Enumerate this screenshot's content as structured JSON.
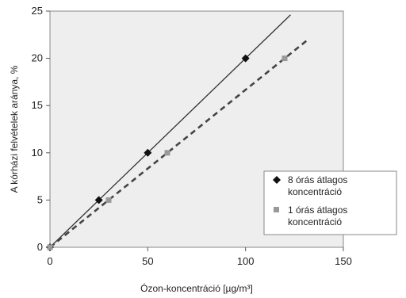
{
  "chart_data": {
    "type": "line",
    "xlabel": "Ózon-koncentráció [µg/m³]",
    "ylabel": "A kórházi felvételek aránya, %",
    "xlim": [
      0,
      150
    ],
    "ylim": [
      0,
      25
    ],
    "xticks": [
      "0",
      "50",
      "100",
      "150"
    ],
    "yticks": [
      "0",
      "5",
      "10",
      "15",
      "20",
      "25"
    ],
    "grid": false,
    "legend_position": "bottom-right",
    "series": [
      {
        "name": "8 órás átlagos koncentráció",
        "name_lines": [
          "8 órás átlagos",
          "koncentráció"
        ],
        "marker": "diamond",
        "line_style": "solid",
        "color": "#111111",
        "points": [
          {
            "x": 0,
            "y": 0
          },
          {
            "x": 25,
            "y": 5
          },
          {
            "x": 50,
            "y": 10
          },
          {
            "x": 100,
            "y": 20
          }
        ],
        "line": [
          {
            "x": 0,
            "y": 0
          },
          {
            "x": 123,
            "y": 24.6
          }
        ]
      },
      {
        "name": "1 órás átlagos koncentráció",
        "name_lines": [
          "1 órás átlagos",
          "koncentráció"
        ],
        "marker": "square",
        "line_style": "dashed",
        "color": "#999999",
        "points": [
          {
            "x": 0,
            "y": 0
          },
          {
            "x": 30,
            "y": 5
          },
          {
            "x": 60,
            "y": 10
          },
          {
            "x": 120,
            "y": 20
          }
        ],
        "line": [
          {
            "x": 0,
            "y": 0
          },
          {
            "x": 132,
            "y": 22
          }
        ]
      }
    ]
  }
}
